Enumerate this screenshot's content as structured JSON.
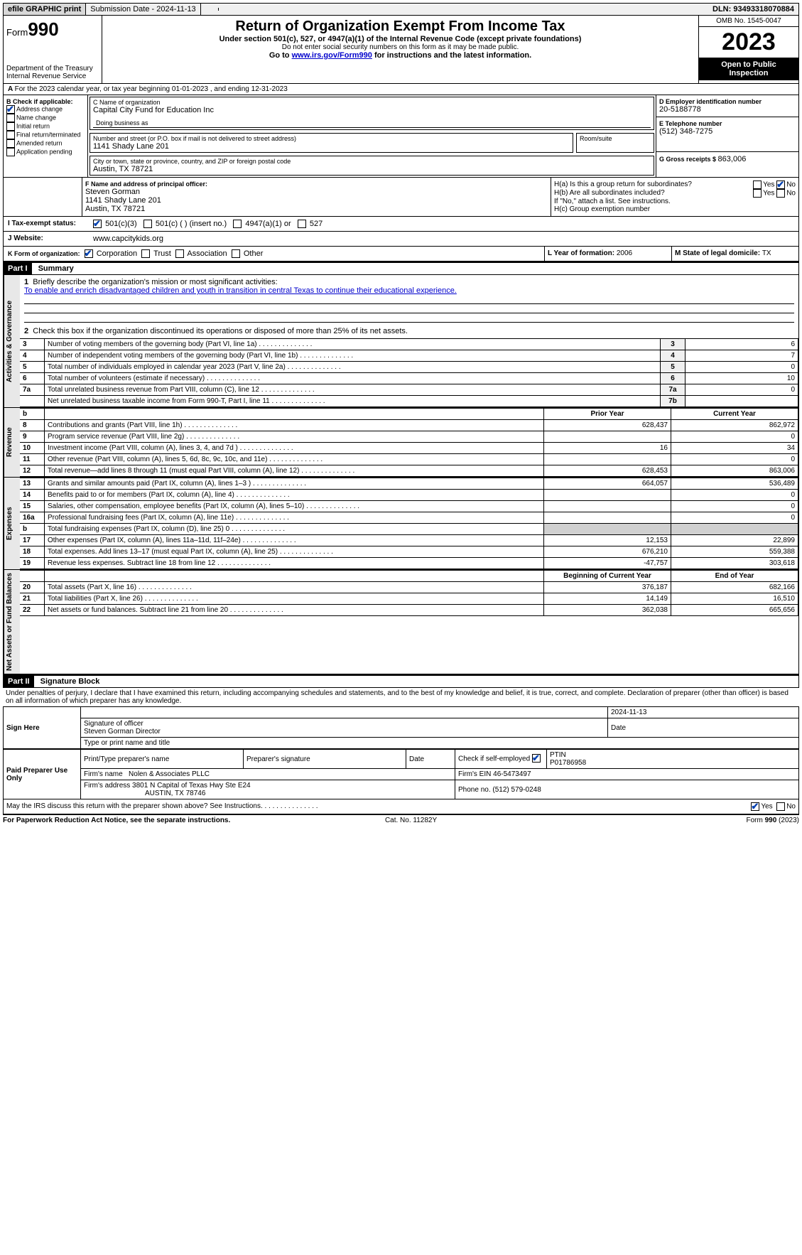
{
  "topbar": {
    "efile": "efile GRAPHIC print",
    "submission_label": "Submission Date - 2024-11-13",
    "dln_label": "DLN: 93493318070884"
  },
  "header": {
    "form_prefix": "Form",
    "form_no": "990",
    "dept": "Department of the Treasury",
    "irs": "Internal Revenue Service",
    "title": "Return of Organization Exempt From Income Tax",
    "sub1": "Under section 501(c), 527, or 4947(a)(1) of the Internal Revenue Code (except private foundations)",
    "sub2": "Do not enter social security numbers on this form as it may be made public.",
    "sub3_pre": "Go to ",
    "sub3_link": "www.irs.gov/Form990",
    "sub3_post": " for instructions and the latest information.",
    "omb": "OMB No. 1545-0047",
    "year": "2023",
    "open": "Open to Public Inspection"
  },
  "lineA": "For the 2023 calendar year, or tax year beginning 01-01-2023   , and ending 12-31-2023",
  "boxB": {
    "label": "B Check if applicable:",
    "items": [
      "Address change",
      "Name change",
      "Initial return",
      "Final return/terminated",
      "Amended return",
      "Application pending"
    ],
    "checked_index": 0
  },
  "boxC": {
    "name_label": "C Name of organization",
    "name": "Capital City Fund for Education Inc",
    "dba_label": "Doing business as",
    "addr_label": "Number and street (or P.O. box if mail is not delivered to street address)",
    "room_label": "Room/suite",
    "addr": "1141 Shady Lane 201",
    "city_label": "City or town, state or province, country, and ZIP or foreign postal code",
    "city": "Austin, TX   78721"
  },
  "boxD": {
    "label": "D Employer identification number",
    "value": "20-5188778"
  },
  "boxE": {
    "label": "E Telephone number",
    "value": "(512) 348-7275"
  },
  "boxG": {
    "label": "G Gross receipts $ ",
    "value": "863,006"
  },
  "boxF": {
    "label": "F  Name and address of principal officer:",
    "name": "Steven Gorman",
    "addr1": "1141 Shady Lane 201",
    "addr2": "Austin, TX   78721"
  },
  "boxH": {
    "a": "H(a)  Is this a group return for subordinates?",
    "b": "H(b)  Are all subordinates included?",
    "note": "If \"No,\" attach a list. See instructions.",
    "c": "H(c)  Group exemption number",
    "yes": "Yes",
    "no": "No"
  },
  "taxexempt": {
    "label": "I    Tax-exempt status:",
    "opts": [
      "501(c)(3)",
      "501(c) (  ) (insert no.)",
      "4947(a)(1) or",
      "527"
    ]
  },
  "website": {
    "label": "J    Website:",
    "value": "www.capcitykids.org"
  },
  "formorg": {
    "label": "K Form of organization:",
    "opts": [
      "Corporation",
      "Trust",
      "Association",
      "Other"
    ]
  },
  "boxL": {
    "label": "L Year of formation: ",
    "value": "2006"
  },
  "boxM": {
    "label": "M State of legal domicile: ",
    "value": "TX"
  },
  "part1": {
    "hdr": "Part I",
    "title": "Summary",
    "vlabels": {
      "gov": "Activities & Governance",
      "rev": "Revenue",
      "exp": "Expenses",
      "net": "Net Assets or Fund Balances"
    },
    "q1_label": "Briefly describe the organization's mission or most significant activities:",
    "q1_text": "To enable and enrich disadvantaged children and youth in transition in central Texas to continue their educational experience.",
    "q2": "Check this box       if the organization discontinued its operations or disposed of more than 25% of its net assets.",
    "rows_gov": [
      {
        "n": "3",
        "t": "Number of voting members of the governing body (Part VI, line 1a)",
        "ln": "3",
        "v": "6"
      },
      {
        "n": "4",
        "t": "Number of independent voting members of the governing body (Part VI, line 1b)",
        "ln": "4",
        "v": "7"
      },
      {
        "n": "5",
        "t": "Total number of individuals employed in calendar year 2023 (Part V, line 2a)",
        "ln": "5",
        "v": "0"
      },
      {
        "n": "6",
        "t": "Total number of volunteers (estimate if necessary)",
        "ln": "6",
        "v": "10"
      },
      {
        "n": "7a",
        "t": "Total unrelated business revenue from Part VIII, column (C), line 12",
        "ln": "7a",
        "v": "0"
      },
      {
        "n": "",
        "t": "Net unrelated business taxable income from Form 990-T, Part I, line 11",
        "ln": "7b",
        "v": ""
      }
    ],
    "col_b": "b",
    "col_prior": "Prior Year",
    "col_current": "Current Year",
    "rows_rev": [
      {
        "n": "8",
        "t": "Contributions and grants (Part VIII, line 1h)",
        "p": "628,437",
        "c": "862,972"
      },
      {
        "n": "9",
        "t": "Program service revenue (Part VIII, line 2g)",
        "p": "",
        "c": "0"
      },
      {
        "n": "10",
        "t": "Investment income (Part VIII, column (A), lines 3, 4, and 7d )",
        "p": "16",
        "c": "34"
      },
      {
        "n": "11",
        "t": "Other revenue (Part VIII, column (A), lines 5, 6d, 8c, 9c, 10c, and 11e)",
        "p": "",
        "c": "0"
      },
      {
        "n": "12",
        "t": "Total revenue—add lines 8 through 11 (must equal Part VIII, column (A), line 12)",
        "p": "628,453",
        "c": "863,006"
      }
    ],
    "rows_exp": [
      {
        "n": "13",
        "t": "Grants and similar amounts paid (Part IX, column (A), lines 1–3 )",
        "p": "664,057",
        "c": "536,489"
      },
      {
        "n": "14",
        "t": "Benefits paid to or for members (Part IX, column (A), line 4)",
        "p": "",
        "c": "0"
      },
      {
        "n": "15",
        "t": "Salaries, other compensation, employee benefits (Part IX, column (A), lines 5–10)",
        "p": "",
        "c": "0"
      },
      {
        "n": "16a",
        "t": "Professional fundraising fees (Part IX, column (A), line 11e)",
        "p": "",
        "c": "0"
      },
      {
        "n": "b",
        "t": "Total fundraising expenses (Part IX, column (D), line 25) 0",
        "p": "shade",
        "c": "shade"
      },
      {
        "n": "17",
        "t": "Other expenses (Part IX, column (A), lines 11a–11d, 11f–24e)",
        "p": "12,153",
        "c": "22,899"
      },
      {
        "n": "18",
        "t": "Total expenses. Add lines 13–17 (must equal Part IX, column (A), line 25)",
        "p": "676,210",
        "c": "559,388"
      },
      {
        "n": "19",
        "t": "Revenue less expenses. Subtract line 18 from line 12",
        "p": "-47,757",
        "c": "303,618"
      }
    ],
    "col_begin": "Beginning of Current Year",
    "col_end": "End of Year",
    "rows_net": [
      {
        "n": "20",
        "t": "Total assets (Part X, line 16)",
        "p": "376,187",
        "c": "682,166"
      },
      {
        "n": "21",
        "t": "Total liabilities (Part X, line 26)",
        "p": "14,149",
        "c": "16,510"
      },
      {
        "n": "22",
        "t": "Net assets or fund balances. Subtract line 21 from line 20",
        "p": "362,038",
        "c": "665,656"
      }
    ]
  },
  "part2": {
    "hdr": "Part II",
    "title": "Signature Block",
    "decl": "Under penalties of perjury, I declare that I have examined this return, including accompanying schedules and statements, and to the best of my knowledge and belief, it is true, correct, and complete. Declaration of preparer (other than officer) is based on all information of which preparer has any knowledge."
  },
  "sign": {
    "here": "Sign Here",
    "sig_label": "Signature of officer",
    "date_label": "Date",
    "date": "2024-11-13",
    "name": "Steven Gorman  Director",
    "name_label": "Type or print name and title"
  },
  "paid": {
    "label": "Paid Preparer Use Only",
    "cols": [
      "Print/Type preparer's name",
      "Preparer's signature",
      "Date"
    ],
    "check_label": "Check         if self-employed",
    "ptin_label": "PTIN",
    "ptin": "P01786958",
    "firm_label": "Firm's name",
    "firm": "Nolen & Associates PLLC",
    "ein_label": "Firm's EIN",
    "ein": "46-5473497",
    "addr_label": "Firm's address",
    "addr1": "3801 N Capital of Texas Hwy Ste E24",
    "addr2": "AUSTIN, TX   78746",
    "phone_label": "Phone no.",
    "phone": "(512) 579-0248"
  },
  "discuss": {
    "q": "May the IRS discuss this return with the preparer shown above? See Instructions.",
    "yes": "Yes",
    "no": "No"
  },
  "footer": {
    "left": "For Paperwork Reduction Act Notice, see the separate instructions.",
    "mid": "Cat. No. 11282Y",
    "right_pre": "Form ",
    "right_form": "990",
    "right_post": " (2023)"
  }
}
